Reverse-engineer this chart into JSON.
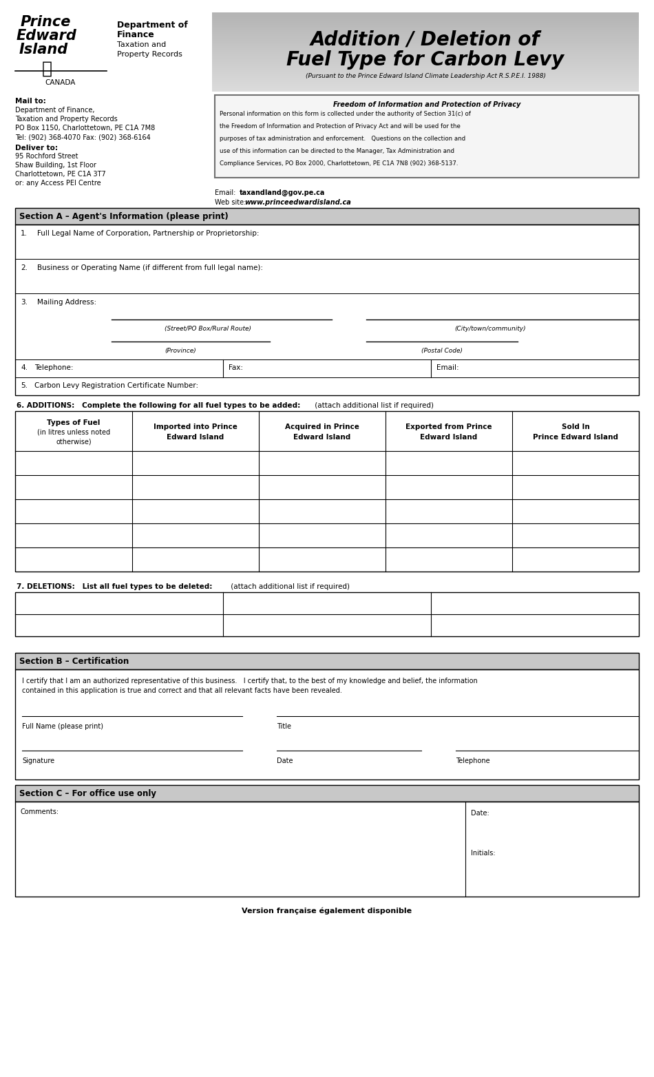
{
  "page_bg": "#ffffff",
  "title_line1": "Addition / Deletion of",
  "title_line2": "Fuel Type for Carbon Levy",
  "title_subtitle": "(Pursuant to the Prince Edward Island Climate Leadership Act R.S.P.E.I. 1988)",
  "dept_line1": "Department of",
  "dept_line2": "Finance",
  "dept_line3": "Taxation and",
  "dept_line4": "Property Records",
  "canada": "CANADA",
  "mail_to_label": "Mail to:",
  "mail_to_lines": [
    "Department of Finance,",
    "Taxation and Property Records",
    "PO Box 1150, Charlottetown, PE C1A 7M8",
    "Tel: (902) 368-4070 Fax: (902) 368-6164"
  ],
  "deliver_to_label": "Deliver to:",
  "deliver_to_lines": [
    "95 Rochford Street",
    "Shaw Building, 1st Floor",
    "Charlottetown, PE C1A 3T7",
    "or: any Access PEI Centre"
  ],
  "privacy_title": "Freedom of Information and Protection of Privacy",
  "privacy_lines": [
    "Personal information on this form is collected under the authority of Section 31(c) of",
    "the Freedom of Information and Protection of Privacy Act and will be used for the",
    "purposes of tax administration and enforcement.   Questions on the collection and",
    "use of this information can be directed to the Manager, Tax Administration and",
    "Compliance Services, PO Box 2000, Charlottetown, PE C1A 7N8 (902) 368-5137."
  ],
  "email_value": "taxandland@gov.pe.ca",
  "website_value": "www.princeedwardisland.ca",
  "section_a_title": "Section A – Agent's Information (please print)",
  "field1_text": "Full Legal Name of Corporation, Partnership or Proprietorship:",
  "field2_text": "Business or Operating Name (if different from full legal name):",
  "field3_text": "Mailing Address:",
  "street_label": "(Street/PO Box/Rural Route)",
  "city_label": "(City/town/community)",
  "province_label": "(Province)",
  "postal_label": "(Postal Code)",
  "field4_text": "Telephone:",
  "fax_text": "Fax:",
  "email_field_text": "Email:",
  "field5_text": "Carbon Levy Registration Certificate Number:",
  "col1_lines": [
    "Types of Fuel",
    "(in litres unless noted",
    "otherwise)"
  ],
  "col2_lines": [
    "Imported into Prince",
    "Edward Island"
  ],
  "col3_lines": [
    "Acquired in Prince",
    "Edward Island"
  ],
  "col4_lines": [
    "Exported from Prince",
    "Edward Island"
  ],
  "col5_lines": [
    "Sold In",
    "Prince Edward Island"
  ],
  "section7_bold": "7. DELETIONS:   List all fuel types to be deleted:",
  "section7_normal": " (attach additional list if required)",
  "section_b_title": "Section B – Certification",
  "cert_lines": [
    "I certify that I am an authorized representative of this business.   I certify that, to the best of my knowledge and belief, the information",
    "contained in this application is true and correct and that all relevant facts have been revealed."
  ],
  "full_name_label": "Full Name (please print)",
  "title_field_label": "Title",
  "signature_label": "Signature",
  "date_label": "Date",
  "telephone_label": "Telephone",
  "section_c_title": "Section C – For office use only",
  "comments_label": "Comments:",
  "date_field_label": "Date:",
  "initials_label": "Initials:",
  "footer_text": "Version française également disponible"
}
